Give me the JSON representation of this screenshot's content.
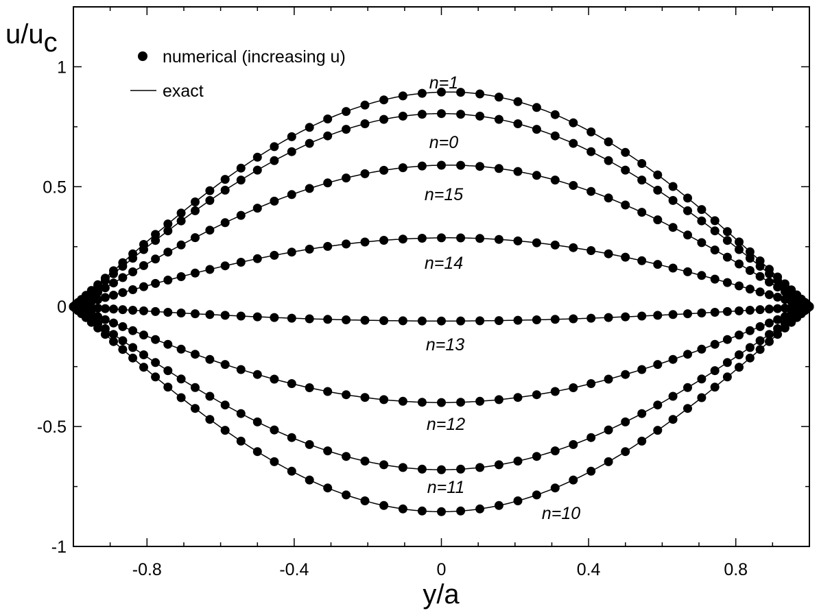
{
  "chart_data": {
    "type": "line",
    "xlabel": "y/a",
    "ylabel_main": "u/u",
    "ylabel_sub": "c",
    "xlim": [
      -1,
      1
    ],
    "ylim": [
      -1,
      1.25
    ],
    "x_ticks": [
      -0.8,
      -0.4,
      0,
      0.4,
      0.8
    ],
    "x_tick_labels": [
      "-0.8",
      "-0.4",
      "0",
      "0.4",
      "0.8"
    ],
    "y_ticks": [
      -1,
      -0.5,
      0,
      0.5,
      1
    ],
    "y_tick_labels": [
      "-1",
      "-0.5",
      "0",
      "0.5",
      "1"
    ],
    "grid": false,
    "legend_position": "top-left",
    "legend": {
      "markers_label": "numerical (increasing u)",
      "line_label": "exact"
    },
    "curves": [
      {
        "label": "n=1",
        "amplitude": 0.895,
        "center": 0.02
      },
      {
        "label": "n=0",
        "amplitude": 0.805,
        "center": 0.0
      },
      {
        "label": "n=15",
        "amplitude": 0.59,
        "center": 0.02
      },
      {
        "label": "n=14",
        "amplitude": 0.287,
        "center": 0.02
      },
      {
        "label": "n=13",
        "amplitude": -0.06,
        "center": 0.0
      },
      {
        "label": "n=12",
        "amplitude": -0.4,
        "center": 0.0
      },
      {
        "label": "n=11",
        "amplitude": -0.68,
        "center": 0.0
      },
      {
        "label": "n=10",
        "amplitude": -0.855,
        "center": 0.0
      }
    ]
  }
}
